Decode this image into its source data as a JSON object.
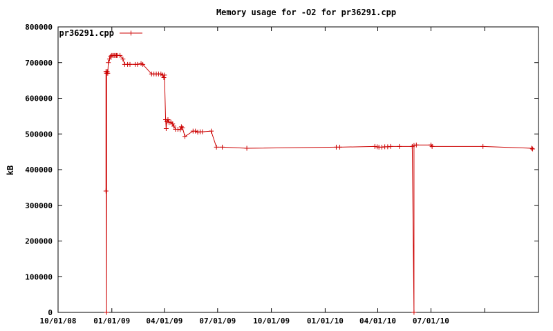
{
  "chart_data": {
    "type": "line",
    "title": "Memory usage for -O2 for pr36291.cpp",
    "xlabel": "",
    "ylabel": "kB",
    "xlim": [
      "2008-10-01",
      "2011-01-01"
    ],
    "ylim": [
      0,
      800000
    ],
    "grid": false,
    "legend_position": "top-left",
    "color": "#cc0000",
    "xticks": [
      {
        "date": "2008-10-01",
        "label": "10/01/08"
      },
      {
        "date": "2009-01-01",
        "label": "01/01/09"
      },
      {
        "date": "2009-04-01",
        "label": "04/01/09"
      },
      {
        "date": "2009-07-01",
        "label": "07/01/09"
      },
      {
        "date": "2009-10-01",
        "label": "10/01/09"
      },
      {
        "date": "2010-01-01",
        "label": "01/01/10"
      },
      {
        "date": "2010-04-01",
        "label": "04/01/10"
      },
      {
        "date": "2010-07-01",
        "label": "07/01/10"
      }
    ],
    "xminor": [
      "2010-10-01",
      "2011-01-01"
    ],
    "yticks": [
      {
        "value": 0,
        "label": "0"
      },
      {
        "value": 100000,
        "label": "100000"
      },
      {
        "value": 200000,
        "label": "200000"
      },
      {
        "value": 300000,
        "label": "300000"
      },
      {
        "value": 400000,
        "label": "400000"
      },
      {
        "value": 500000,
        "label": "500000"
      },
      {
        "value": 600000,
        "label": "600000"
      },
      {
        "value": 700000,
        "label": "700000"
      },
      {
        "value": 800000,
        "label": "800000"
      }
    ],
    "series": [
      {
        "name": "pr36291.cpp",
        "points": [
          [
            "2008-12-22",
            340000
          ],
          [
            "2008-12-22",
            675000
          ],
          [
            "2008-12-23",
            0
          ],
          [
            "2008-12-23",
            670000
          ],
          [
            "2008-12-24",
            675000
          ],
          [
            "2008-12-25",
            670000
          ],
          [
            "2008-12-26",
            700000
          ],
          [
            "2008-12-28",
            710000
          ],
          [
            "2008-12-30",
            718000
          ],
          [
            "2009-01-01",
            720000
          ],
          [
            "2009-01-03",
            720000
          ],
          [
            "2009-01-05",
            720000
          ],
          [
            "2009-01-07",
            720000
          ],
          [
            "2009-01-09",
            720000
          ],
          [
            "2009-01-11",
            720000
          ],
          [
            "2009-01-15",
            720000
          ],
          [
            "2009-01-20",
            710000
          ],
          [
            "2009-01-23",
            695000
          ],
          [
            "2009-01-28",
            695000
          ],
          [
            "2009-02-01",
            695000
          ],
          [
            "2009-02-10",
            695000
          ],
          [
            "2009-02-14",
            695000
          ],
          [
            "2009-02-20",
            697000
          ],
          [
            "2009-02-23",
            695000
          ],
          [
            "2009-03-10",
            668000
          ],
          [
            "2009-03-14",
            668000
          ],
          [
            "2009-03-18",
            668000
          ],
          [
            "2009-03-22",
            668000
          ],
          [
            "2009-03-26",
            668000
          ],
          [
            "2009-03-29",
            665000
          ],
          [
            "2009-03-31",
            658000
          ],
          [
            "2009-04-01",
            665000
          ],
          [
            "2009-04-03",
            540000
          ],
          [
            "2009-04-04",
            515000
          ],
          [
            "2009-04-05",
            535000
          ],
          [
            "2009-04-07",
            540000
          ],
          [
            "2009-04-09",
            532000
          ],
          [
            "2009-04-12",
            533000
          ],
          [
            "2009-04-15",
            528000
          ],
          [
            "2009-04-17",
            522000
          ],
          [
            "2009-04-20",
            513000
          ],
          [
            "2009-04-24",
            513000
          ],
          [
            "2009-04-28",
            512000
          ],
          [
            "2009-04-30",
            520000
          ],
          [
            "2009-05-02",
            517000
          ],
          [
            "2009-05-06",
            493000
          ],
          [
            "2009-05-20",
            508000
          ],
          [
            "2009-05-24",
            508000
          ],
          [
            "2009-05-28",
            505000
          ],
          [
            "2009-06-01",
            506000
          ],
          [
            "2009-06-05",
            506000
          ],
          [
            "2009-06-20",
            508000
          ],
          [
            "2009-06-29",
            463000
          ],
          [
            "2009-07-09",
            463000
          ],
          [
            "2009-08-20",
            460000
          ],
          [
            "2010-01-20",
            463000
          ],
          [
            "2010-01-26",
            463000
          ],
          [
            "2010-03-27",
            465000
          ],
          [
            "2010-03-31",
            464000
          ],
          [
            "2010-04-03",
            463000
          ],
          [
            "2010-04-08",
            463000
          ],
          [
            "2010-04-13",
            464000
          ],
          [
            "2010-04-18",
            464000
          ],
          [
            "2010-04-23",
            465000
          ],
          [
            "2010-05-08",
            465000
          ],
          [
            "2010-05-30",
            465000
          ],
          [
            "2010-06-02",
            0
          ],
          [
            "2010-06-02",
            468000
          ],
          [
            "2010-06-06",
            469000
          ],
          [
            "2010-07-01",
            469000
          ],
          [
            "2010-07-03",
            465000
          ],
          [
            "2010-09-28",
            465000
          ],
          [
            "2010-12-20",
            460000
          ],
          [
            "2010-12-22",
            458000
          ]
        ]
      }
    ]
  }
}
